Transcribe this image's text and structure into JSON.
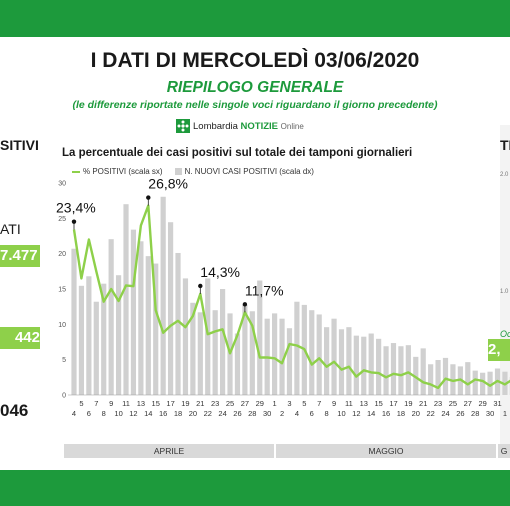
{
  "header": {
    "title": "I DATI DI MERCOLEDÌ 03/06/2020",
    "subtitle": "RIEPILOGO GENERALE",
    "note": "(le differenze riportate nelle singole voci riguardano il giorno precedente)"
  },
  "brand": {
    "name": "Lombardia",
    "highlight": "NOTIZIE",
    "suffix": "Online"
  },
  "left_panel": {
    "label": "SITIVI",
    "sub_label": "ATI",
    "value1": "7.477",
    "value2": "442",
    "value3": "046"
  },
  "right_panel": {
    "label": "TI",
    "tick_top": "2.0",
    "tick_mid": "1.0",
    "caption": "Oc",
    "value": "2,"
  },
  "chart_labels": {
    "title": "La percentuale dei casi positivi sul totale dei tamponi giornalieri",
    "legend_line": "% POSITIVI (scala sx)",
    "legend_bar": "N. NUOVI CASI POSITIVI (scala dx)"
  },
  "chart_data": {
    "type": "line",
    "x": [
      "4",
      "5",
      "6",
      "7",
      "8",
      "9",
      "10",
      "11",
      "12",
      "13",
      "14",
      "15",
      "16",
      "17",
      "18",
      "19",
      "20",
      "21",
      "22",
      "23",
      "24",
      "25",
      "26",
      "27",
      "28",
      "29",
      "30",
      "1",
      "2",
      "3",
      "4",
      "5",
      "6",
      "7",
      "8",
      "9",
      "10",
      "11",
      "12",
      "13",
      "14",
      "15",
      "16",
      "17",
      "18",
      "19",
      "20",
      "21",
      "22",
      "23",
      "24",
      "25",
      "26",
      "27",
      "28",
      "29",
      "30",
      "31",
      "1",
      "2"
    ],
    "x_ticks": [
      "4",
      "6",
      "8",
      "10",
      "12",
      "14",
      "16",
      "18",
      "20",
      "22",
      "24",
      "26",
      "28",
      "30",
      "2",
      "4",
      "6",
      "8",
      "10",
      "12",
      "14",
      "16",
      "18",
      "20",
      "22",
      "24",
      "26",
      "28",
      "30",
      "1"
    ],
    "x_ticks_odd": [
      "5",
      "7",
      "9",
      "11",
      "13",
      "15",
      "17",
      "19",
      "21",
      "23",
      "25",
      "27",
      "29",
      "1",
      "3",
      "5",
      "7",
      "9",
      "11",
      "13",
      "15",
      "17",
      "19",
      "21",
      "23",
      "25",
      "27",
      "29",
      "31",
      "2"
    ],
    "months": [
      "APRILE",
      "MAGGIO",
      "G"
    ],
    "series": [
      {
        "name": "% POSITIVI (scala sx)",
        "type": "line",
        "axis": "left",
        "color": "#8ed04a",
        "values": [
          23.4,
          16.5,
          22.0,
          17.5,
          13.2,
          15.0,
          13.3,
          15.5,
          15.4,
          24.0,
          26.8,
          12.0,
          8.8,
          9.8,
          10.5,
          9.6,
          11.2,
          14.3,
          8.6,
          9.0,
          9.3,
          5.9,
          8.5,
          11.7,
          9.8,
          5.3,
          5.3,
          5.2,
          4.5,
          7.2,
          7.0,
          6.5,
          4.3,
          5.2,
          4.0,
          4.7,
          3.6,
          4.0,
          2.6,
          3.5,
          3.2,
          3.1,
          2.5,
          3.0,
          2.8,
          3.2,
          2.5,
          1.8,
          1.5,
          1.0,
          2.3,
          2.0,
          2.2,
          1.5,
          2.2,
          2.0,
          1.3,
          2.0,
          1.5,
          2.2
        ]
      },
      {
        "name": "N. NUOVI CASI POSITIVI (scala dx)",
        "type": "bar",
        "axis": "right",
        "color": "#d0d0d0",
        "values": [
          1380,
          1030,
          1120,
          880,
          1050,
          1470,
          1130,
          1800,
          1560,
          1450,
          1310,
          1240,
          1870,
          1630,
          1340,
          1100,
          870,
          780,
          1100,
          800,
          1000,
          770,
          580,
          850,
          790,
          1080,
          720,
          770,
          720,
          630,
          880,
          850,
          800,
          760,
          640,
          720,
          620,
          640,
          560,
          550,
          580,
          530,
          460,
          490,
          460,
          470,
          360,
          440,
          290,
          330,
          350,
          290,
          270,
          310,
          230,
          210,
          220,
          250,
          220,
          170
        ]
      }
    ],
    "annotations": [
      {
        "label": "23,4%",
        "x": "4",
        "y": 23.4
      },
      {
        "label": "26,8%",
        "x": "14",
        "y": 26.8
      },
      {
        "label": "14,3%",
        "x": "21",
        "y": 14.3
      },
      {
        "label": "11,7%",
        "x": "27",
        "y": 11.7
      }
    ],
    "y_ticks_left": [
      "30",
      "25",
      "20",
      "15",
      "10",
      "5",
      "0"
    ],
    "ylim_left": [
      0,
      30
    ],
    "ylim_right": [
      0,
      2000
    ],
    "grid": false
  },
  "colors": {
    "brand_green": "#1d9a3c",
    "line_green": "#8ed04a",
    "bar_grey": "#d0d0d0"
  }
}
